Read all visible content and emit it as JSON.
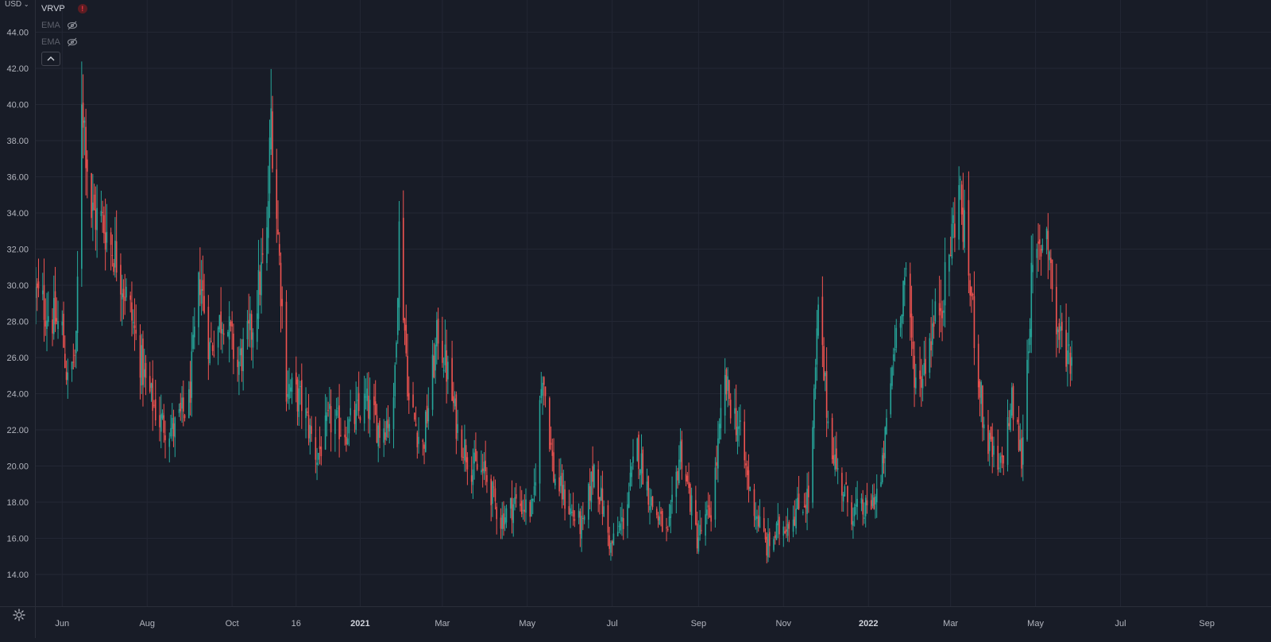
{
  "toolbar": {
    "currency_label": "USD",
    "currency_chevron_icon": "chevron-down-icon",
    "settings_icon": "gear-icon"
  },
  "legend": {
    "items": [
      {
        "label": "VRVP",
        "icon": "warning-icon",
        "icon_text": "!"
      },
      {
        "label": "EMA",
        "icon": "eye-crossed-icon"
      },
      {
        "label": "EMA",
        "icon": "eye-crossed-icon"
      }
    ],
    "collapse_icon": "chevron-up-icon"
  },
  "colors": {
    "background": "#181c27",
    "grid": "#232734",
    "up": "#26a69a",
    "down": "#ef5350",
    "axis_text": "#b2b5be"
  },
  "chart_data": {
    "type": "candlestick",
    "title": "",
    "xlabel": "",
    "ylabel": "",
    "currency": "USD",
    "ylim": [
      13.0,
      45.0
    ],
    "xlim": [
      "2020-05-13",
      "2022-09-30"
    ],
    "grid": true,
    "y_ticks": [
      "14.00",
      "16.00",
      "18.00",
      "20.00",
      "22.00",
      "24.00",
      "26.00",
      "28.00",
      "30.00",
      "32.00",
      "34.00",
      "36.00",
      "38.00",
      "40.00",
      "42.00",
      "44.00"
    ],
    "x_ticks": [
      {
        "date": "2020-06-01",
        "label": "Jun"
      },
      {
        "date": "2020-08-01",
        "label": "Aug"
      },
      {
        "date": "2020-10-01",
        "label": "Oct"
      },
      {
        "date": "2020-11-16",
        "label": "16"
      },
      {
        "date": "2021-01-01",
        "label": "2021"
      },
      {
        "date": "2021-03-01",
        "label": "Mar"
      },
      {
        "date": "2021-05-01",
        "label": "May"
      },
      {
        "date": "2021-07-01",
        "label": "Jul"
      },
      {
        "date": "2021-09-01",
        "label": "Sep"
      },
      {
        "date": "2021-11-01",
        "label": "Nov"
      },
      {
        "date": "2022-01-01",
        "label": "2022"
      },
      {
        "date": "2022-03-01",
        "label": "Mar"
      },
      {
        "date": "2022-05-01",
        "label": "May"
      },
      {
        "date": "2022-07-01",
        "label": "Jul"
      },
      {
        "date": "2022-09-01",
        "label": "Sep"
      }
    ],
    "series": [
      {
        "date_start": "2020-05-13",
        "date_end": "2022-05-27",
        "close_path": [
          [
            "2020-05-13",
            29.5
          ],
          [
            "2020-05-22",
            28.5
          ],
          [
            "2020-06-01",
            27.5
          ],
          [
            "2020-06-05",
            24.5
          ],
          [
            "2020-06-11",
            26.5
          ],
          [
            "2020-06-15",
            40.8
          ],
          [
            "2020-06-22",
            34.0
          ],
          [
            "2020-06-30",
            33.5
          ],
          [
            "2020-07-10",
            31.5
          ],
          [
            "2020-07-20",
            28.5
          ],
          [
            "2020-07-31",
            24.5
          ],
          [
            "2020-08-10",
            22.5
          ],
          [
            "2020-08-20",
            22.0
          ],
          [
            "2020-08-31",
            23.5
          ],
          [
            "2020-09-08",
            30.5
          ],
          [
            "2020-09-15",
            26.5
          ],
          [
            "2020-09-25",
            28.5
          ],
          [
            "2020-10-05",
            25.5
          ],
          [
            "2020-10-15",
            27.5
          ],
          [
            "2020-10-26",
            32.5
          ],
          [
            "2020-10-29",
            39.5
          ],
          [
            "2020-11-05",
            30.0
          ],
          [
            "2020-11-09",
            24.5
          ],
          [
            "2020-11-20",
            23.5
          ],
          [
            "2020-12-01",
            20.5
          ],
          [
            "2020-12-10",
            22.5
          ],
          [
            "2020-12-22",
            22.0
          ],
          [
            "2021-01-05",
            23.5
          ],
          [
            "2021-01-15",
            22.0
          ],
          [
            "2021-01-25",
            23.0
          ],
          [
            "2021-01-29",
            33.0
          ],
          [
            "2021-02-05",
            23.5
          ],
          [
            "2021-02-15",
            21.0
          ],
          [
            "2021-02-26",
            27.5
          ],
          [
            "2021-03-05",
            25.0
          ],
          [
            "2021-03-12",
            22.0
          ],
          [
            "2021-03-22",
            20.0
          ],
          [
            "2021-04-01",
            19.5
          ],
          [
            "2021-04-12",
            17.0
          ],
          [
            "2021-04-22",
            18.0
          ],
          [
            "2021-05-05",
            17.5
          ],
          [
            "2021-05-12",
            25.5
          ],
          [
            "2021-05-20",
            19.5
          ],
          [
            "2021-06-01",
            17.5
          ],
          [
            "2021-06-10",
            16.5
          ],
          [
            "2021-06-18",
            20.0
          ],
          [
            "2021-06-30",
            15.5
          ],
          [
            "2021-07-09",
            17.0
          ],
          [
            "2021-07-19",
            21.0
          ],
          [
            "2021-07-29",
            18.0
          ],
          [
            "2021-08-10",
            16.0
          ],
          [
            "2021-08-19",
            21.0
          ],
          [
            "2021-08-31",
            16.0
          ],
          [
            "2021-09-10",
            17.5
          ],
          [
            "2021-09-20",
            24.5
          ],
          [
            "2021-09-30",
            22.0
          ],
          [
            "2021-10-08",
            18.5
          ],
          [
            "2021-10-20",
            15.5
          ],
          [
            "2021-10-29",
            16.5
          ],
          [
            "2021-11-10",
            17.5
          ],
          [
            "2021-11-20",
            18.5
          ],
          [
            "2021-11-26",
            28.5
          ],
          [
            "2021-12-03",
            22.5
          ],
          [
            "2021-12-10",
            19.5
          ],
          [
            "2021-12-20",
            17.5
          ],
          [
            "2021-12-31",
            17.5
          ],
          [
            "2022-01-10",
            19.0
          ],
          [
            "2022-01-20",
            27.0
          ],
          [
            "2022-01-27",
            30.5
          ],
          [
            "2022-02-05",
            24.0
          ],
          [
            "2022-02-14",
            27.0
          ],
          [
            "2022-02-25",
            30.0
          ],
          [
            "2022-03-07",
            35.5
          ],
          [
            "2022-03-15",
            30.0
          ],
          [
            "2022-03-25",
            22.0
          ],
          [
            "2022-04-05",
            19.5
          ],
          [
            "2022-04-14",
            23.5
          ],
          [
            "2022-04-21",
            20.5
          ],
          [
            "2022-04-28",
            30.0
          ],
          [
            "2022-05-09",
            33.5
          ],
          [
            "2022-05-16",
            27.5
          ],
          [
            "2022-05-27",
            26.0
          ]
        ]
      }
    ]
  }
}
